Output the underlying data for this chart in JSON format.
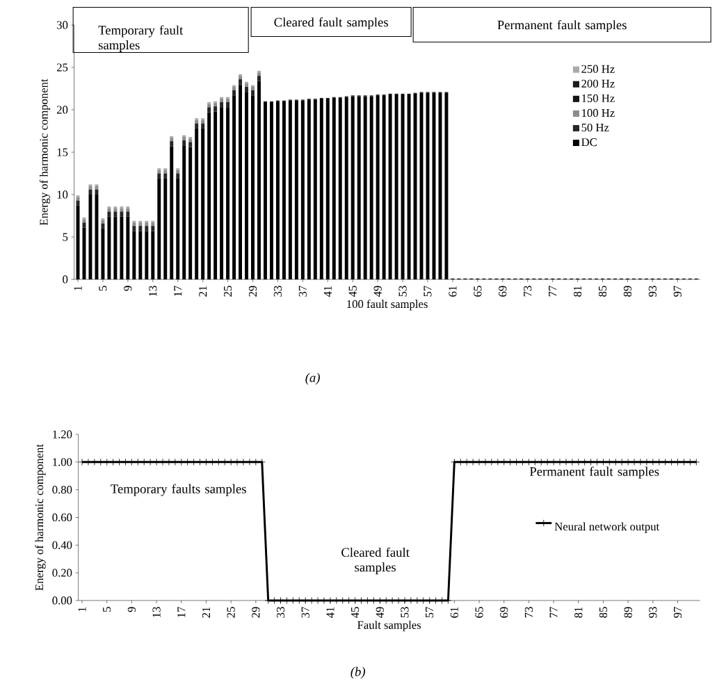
{
  "chart_data": [
    {
      "type": "bar",
      "stacked": true,
      "xlabel": "100 fault samples",
      "ylabel": "Energy of harmonic component",
      "categories": [
        "1",
        null,
        null,
        null,
        "5",
        null,
        null,
        null,
        "9",
        null,
        null,
        null,
        "13",
        null,
        null,
        null,
        "17",
        null,
        null,
        null,
        "21",
        null,
        null,
        null,
        "25",
        null,
        null,
        null,
        "29",
        null,
        null,
        null,
        "33",
        null,
        null,
        null,
        "37",
        null,
        null,
        null,
        "41",
        null,
        null,
        null,
        "45",
        null,
        null,
        null,
        "49",
        null,
        null,
        null,
        "53",
        null,
        null,
        null,
        "57",
        null,
        null,
        null,
        "61",
        null,
        null,
        null,
        "65",
        null,
        null,
        null,
        "69",
        null,
        null,
        null,
        "73",
        null,
        null,
        null,
        "77",
        null,
        null,
        null,
        "81",
        null,
        null,
        null,
        "85",
        null,
        null,
        null,
        "89",
        null,
        null,
        null,
        "93",
        null,
        null,
        null,
        "97",
        null,
        null,
        null
      ],
      "series": [
        {
          "name": "DC",
          "color": "#000000",
          "values": [
            8.7,
            6.1,
            10.0,
            10.0,
            6.0,
            7.4,
            7.4,
            7.4,
            7.4,
            5.7,
            5.7,
            5.7,
            5.7,
            11.9,
            11.9,
            15.7,
            11.9,
            15.8,
            15.6,
            17.8,
            17.8,
            19.7,
            19.8,
            20.3,
            20.3,
            21.7,
            23.0,
            22.1,
            21.7,
            23.4,
            20.9,
            20.9,
            21.0,
            21.0,
            21.1,
            21.1,
            21.1,
            21.2,
            21.2,
            21.3,
            21.3,
            21.4,
            21.4,
            21.5,
            21.6,
            21.6,
            21.6,
            21.6,
            21.7,
            21.7,
            21.8,
            21.8,
            21.8,
            21.8,
            21.9,
            22.0,
            22.0,
            22.0,
            22.0,
            22.0,
            0.1,
            0.1,
            0.1,
            0.1,
            0.1,
            0.1,
            0.1,
            0.1,
            0.1,
            0.1,
            0.1,
            0.1,
            0.1,
            0.1,
            0.1,
            0.1,
            0.1,
            0.1,
            0.1,
            0.1,
            0.1,
            0.1,
            0.1,
            0.1,
            0.1,
            0.1,
            0.1,
            0.1,
            0.1,
            0.1,
            0.1,
            0.1,
            0.1,
            0.1,
            0.1,
            0.1,
            0.1,
            0.1,
            0.1,
            0.1
          ]
        },
        {
          "name": "50 Hz",
          "color": "#262626",
          "values": [
            0.6,
            0.6,
            0.6,
            0.6,
            0.6,
            0.6,
            0.6,
            0.6,
            0.6,
            0.6,
            0.6,
            0.6,
            0.6,
            0.6,
            0.6,
            0.6,
            0.6,
            0.6,
            0.6,
            0.6,
            0.6,
            0.6,
            0.6,
            0.6,
            0.6,
            0.6,
            0.6,
            0.6,
            0.6,
            0.6,
            0.1,
            0.1,
            0.1,
            0.1,
            0.1,
            0.1,
            0.1,
            0.1,
            0.1,
            0.1,
            0.1,
            0.1,
            0.1,
            0.1,
            0.1,
            0.1,
            0.1,
            0.1,
            0.1,
            0.1,
            0.1,
            0.1,
            0.1,
            0.1,
            0.1,
            0.1,
            0.1,
            0.1,
            0.1,
            0.1,
            0,
            0,
            0,
            0,
            0,
            0,
            0,
            0,
            0,
            0,
            0,
            0,
            0,
            0,
            0,
            0,
            0,
            0,
            0,
            0,
            0,
            0,
            0,
            0,
            0,
            0,
            0,
            0,
            0,
            0,
            0,
            0,
            0,
            0,
            0,
            0,
            0,
            0,
            0,
            0
          ]
        },
        {
          "name": "100 Hz",
          "color": "#8c8c8c",
          "values": [
            0.4,
            0.4,
            0.4,
            0.4,
            0.4,
            0.4,
            0.4,
            0.4,
            0.4,
            0.4,
            0.4,
            0.4,
            0.4,
            0.4,
            0.4,
            0.4,
            0.4,
            0.4,
            0.4,
            0.4,
            0.4,
            0.4,
            0.4,
            0.4,
            0.4,
            0.4,
            0.4,
            0.4,
            0.4,
            0.4,
            0,
            0,
            0,
            0,
            0,
            0,
            0,
            0,
            0,
            0,
            0,
            0,
            0,
            0,
            0,
            0,
            0,
            0,
            0,
            0,
            0,
            0,
            0,
            0,
            0,
            0,
            0,
            0,
            0,
            0,
            0,
            0,
            0,
            0,
            0,
            0,
            0,
            0,
            0,
            0,
            0,
            0,
            0,
            0,
            0,
            0,
            0,
            0,
            0,
            0,
            0,
            0,
            0,
            0,
            0,
            0,
            0,
            0,
            0,
            0,
            0,
            0,
            0,
            0,
            0,
            0,
            0,
            0,
            0,
            0
          ]
        },
        {
          "name": "150 Hz",
          "color": "#141414",
          "values": [
            0,
            0,
            0,
            0,
            0,
            0,
            0,
            0,
            0,
            0,
            0,
            0,
            0,
            0,
            0,
            0,
            0,
            0,
            0,
            0,
            0,
            0,
            0,
            0,
            0,
            0,
            0,
            0,
            0,
            0,
            0,
            0,
            0,
            0,
            0,
            0,
            0,
            0,
            0,
            0,
            0,
            0,
            0,
            0,
            0,
            0,
            0,
            0,
            0,
            0,
            0,
            0,
            0,
            0,
            0,
            0,
            0,
            0,
            0,
            0,
            0,
            0,
            0,
            0,
            0,
            0,
            0,
            0,
            0,
            0,
            0,
            0,
            0,
            0,
            0,
            0,
            0,
            0,
            0,
            0,
            0,
            0,
            0,
            0,
            0,
            0,
            0,
            0,
            0,
            0,
            0,
            0,
            0,
            0,
            0,
            0,
            0,
            0,
            0,
            0
          ]
        },
        {
          "name": "200 Hz",
          "color": "#1a1a1a",
          "values": [
            0,
            0,
            0,
            0,
            0,
            0,
            0,
            0,
            0,
            0,
            0,
            0,
            0,
            0,
            0,
            0,
            0,
            0,
            0,
            0,
            0,
            0,
            0,
            0,
            0,
            0,
            0,
            0,
            0,
            0,
            0,
            0,
            0,
            0,
            0,
            0,
            0,
            0,
            0,
            0,
            0,
            0,
            0,
            0,
            0,
            0,
            0,
            0,
            0,
            0,
            0,
            0,
            0,
            0,
            0,
            0,
            0,
            0,
            0,
            0,
            0,
            0,
            0,
            0,
            0,
            0,
            0,
            0,
            0,
            0,
            0,
            0,
            0,
            0,
            0,
            0,
            0,
            0,
            0,
            0,
            0,
            0,
            0,
            0,
            0,
            0,
            0,
            0,
            0,
            0,
            0,
            0,
            0,
            0,
            0,
            0,
            0,
            0,
            0,
            0
          ]
        },
        {
          "name": "250 Hz",
          "color": "#aaaaaa",
          "values": [
            0.2,
            0.2,
            0.2,
            0.2,
            0.2,
            0.2,
            0.2,
            0.2,
            0.2,
            0.2,
            0.2,
            0.2,
            0.2,
            0.2,
            0.2,
            0.2,
            0.2,
            0.2,
            0.2,
            0.2,
            0.2,
            0.2,
            0.2,
            0.2,
            0.2,
            0.2,
            0.2,
            0.2,
            0.2,
            0.2,
            0,
            0,
            0,
            0,
            0,
            0,
            0,
            0,
            0,
            0,
            0,
            0,
            0,
            0,
            0,
            0,
            0,
            0,
            0,
            0,
            0,
            0,
            0,
            0,
            0,
            0,
            0,
            0,
            0,
            0,
            0,
            0,
            0,
            0,
            0,
            0,
            0,
            0,
            0,
            0,
            0,
            0,
            0,
            0,
            0,
            0,
            0,
            0,
            0,
            0,
            0,
            0,
            0,
            0,
            0,
            0,
            0,
            0,
            0,
            0,
            0,
            0,
            0,
            0,
            0,
            0,
            0,
            0,
            0,
            0
          ]
        }
      ],
      "ylim": [
        0,
        30
      ],
      "yticks": [
        0,
        5,
        10,
        15,
        20,
        25,
        30
      ],
      "legend": "right",
      "annotations": [
        "Temporary fault samples",
        "Cleared fault samples",
        "Permanent fault samples",
        "(a)"
      ]
    },
    {
      "type": "line",
      "xlabel": "Fault samples",
      "ylabel": "Energy of harmonic component",
      "categories": [
        "1",
        null,
        null,
        null,
        "5",
        null,
        null,
        null,
        "9",
        null,
        null,
        null,
        "13",
        null,
        null,
        null,
        "17",
        null,
        null,
        null,
        "21",
        null,
        null,
        null,
        "25",
        null,
        null,
        null,
        "29",
        null,
        null,
        null,
        "33",
        null,
        null,
        null,
        "37",
        null,
        null,
        null,
        "41",
        null,
        null,
        null,
        "45",
        null,
        null,
        null,
        "49",
        null,
        null,
        null,
        "53",
        null,
        null,
        null,
        "57",
        null,
        null,
        null,
        "61",
        null,
        null,
        null,
        "65",
        null,
        null,
        null,
        "69",
        null,
        null,
        null,
        "73",
        null,
        null,
        null,
        "77",
        null,
        null,
        null,
        "81",
        null,
        null,
        null,
        "85",
        null,
        null,
        null,
        "89",
        null,
        null,
        null,
        "93",
        null,
        null,
        null,
        "97",
        null,
        null,
        null
      ],
      "series": [
        {
          "name": "Neural network output",
          "color": "#000000",
          "values": [
            1,
            1,
            1,
            1,
            1,
            1,
            1,
            1,
            1,
            1,
            1,
            1,
            1,
            1,
            1,
            1,
            1,
            1,
            1,
            1,
            1,
            1,
            1,
            1,
            1,
            1,
            1,
            1,
            1,
            1,
            0,
            0,
            0,
            0,
            0,
            0,
            0,
            0,
            0,
            0,
            0,
            0,
            0,
            0,
            0,
            0,
            0,
            0,
            0,
            0,
            0,
            0,
            0,
            0,
            0,
            0,
            0,
            0,
            0,
            0,
            1,
            1,
            1,
            1,
            1,
            1,
            1,
            1,
            1,
            1,
            1,
            1,
            1,
            1,
            1,
            1,
            1,
            1,
            1,
            1,
            1,
            1,
            1,
            1,
            1,
            1,
            1,
            1,
            1,
            1,
            1,
            1,
            1,
            1,
            1,
            1,
            1,
            1,
            1,
            1
          ]
        }
      ],
      "ylim": [
        0,
        1.2
      ],
      "yticks": [
        {
          "value": 0,
          "label": "0.00"
        },
        {
          "value": 0.2,
          "label": "0.20"
        },
        {
          "value": 0.4,
          "label": "0.40"
        },
        {
          "value": 0.6,
          "label": "0.60"
        },
        {
          "value": 0.8,
          "label": "0.80"
        },
        {
          "value": 1,
          "label": "1.00"
        },
        {
          "value": 1.2,
          "label": "1.20"
        }
      ],
      "legend": "right",
      "marker": "cross",
      "line_style": "solid",
      "annotations": [
        "Temporary faults samples",
        "Cleared fault samples",
        "Permanent fault samples",
        "(b)"
      ]
    }
  ]
}
